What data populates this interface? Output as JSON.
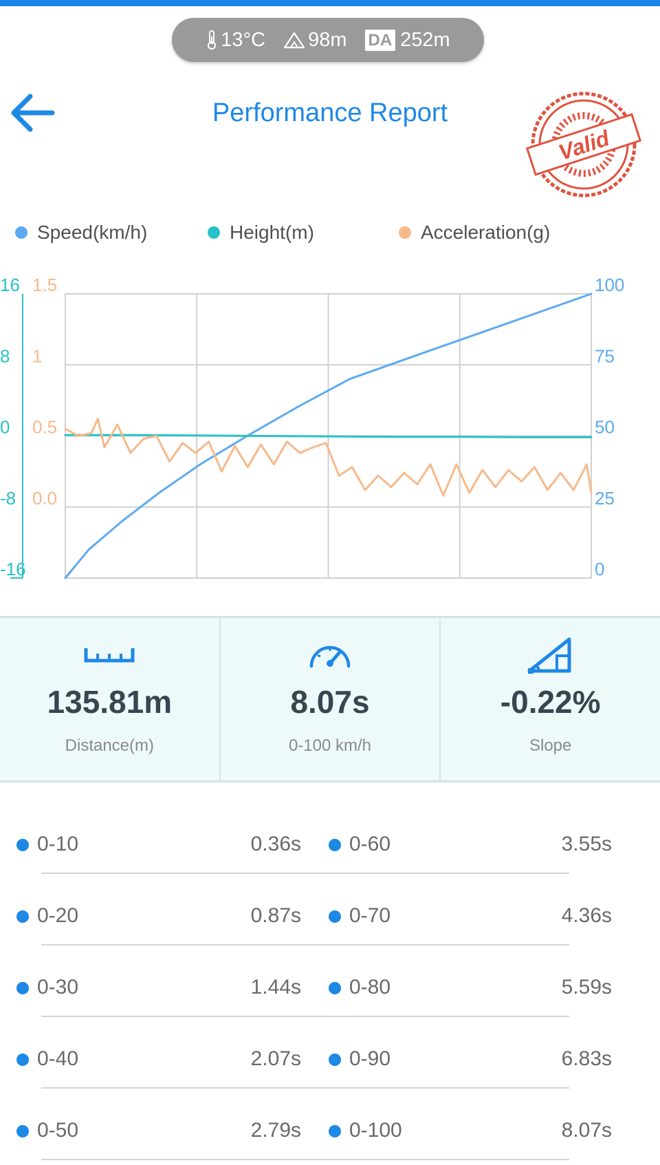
{
  "env": {
    "temperature": "13°C",
    "altitude": "98m",
    "da_label": "DA",
    "density_altitude": "252m"
  },
  "header": {
    "title": "Performance Report",
    "stamp_text": "Valid"
  },
  "legend": [
    {
      "label": "Speed(km/h)",
      "color": "#5eaaf0"
    },
    {
      "label": "Height(m)",
      "color": "#27c2c8"
    },
    {
      "label": "Acceleration(g)",
      "color": "#f7b98a"
    }
  ],
  "chart_data": {
    "type": "line",
    "x_range": [
      0,
      8.07
    ],
    "axes": {
      "height_ticks": [
        "16",
        "8",
        "0",
        "-8",
        "-16"
      ],
      "acceleration_ticks": [
        "1.5",
        "1",
        "0.5",
        "0.0"
      ],
      "speed_ticks": [
        "100",
        "75",
        "50",
        "25",
        "0"
      ],
      "height_range": [
        -16,
        16
      ],
      "acceleration_range": [
        -0.5,
        1.5
      ],
      "speed_range": [
        0,
        100
      ]
    },
    "grid": true,
    "series": [
      {
        "name": "Speed(km/h)",
        "axis": "speed",
        "x": [
          0,
          0.36,
          0.87,
          1.44,
          2.07,
          2.79,
          3.55,
          4.36,
          5.59,
          6.83,
          8.07
        ],
        "y": [
          0,
          10,
          20,
          30,
          40,
          50,
          60,
          70,
          80,
          90,
          100
        ]
      },
      {
        "name": "Height(m)",
        "axis": "height",
        "x": [
          0,
          1,
          2,
          3,
          4,
          5,
          6,
          7,
          8.07
        ],
        "y": [
          0.1,
          0.1,
          0.05,
          0,
          -0.05,
          -0.1,
          -0.1,
          -0.15,
          -0.15
        ]
      },
      {
        "name": "Acceleration(g)",
        "axis": "acceleration",
        "x": [
          0,
          0.2,
          0.4,
          0.5,
          0.6,
          0.8,
          1.0,
          1.2,
          1.4,
          1.6,
          1.8,
          2.0,
          2.2,
          2.4,
          2.6,
          2.8,
          3.0,
          3.2,
          3.4,
          3.6,
          3.8,
          4.0,
          4.2,
          4.4,
          4.6,
          4.8,
          5.0,
          5.2,
          5.4,
          5.6,
          5.8,
          6.0,
          6.2,
          6.4,
          6.6,
          6.8,
          7.0,
          7.2,
          7.4,
          7.6,
          7.8,
          8.0,
          8.07
        ],
        "y": [
          0.55,
          0.5,
          0.52,
          0.62,
          0.42,
          0.58,
          0.38,
          0.48,
          0.5,
          0.32,
          0.45,
          0.38,
          0.46,
          0.25,
          0.43,
          0.28,
          0.44,
          0.3,
          0.46,
          0.38,
          0.42,
          0.45,
          0.22,
          0.28,
          0.12,
          0.22,
          0.14,
          0.24,
          0.16,
          0.3,
          0.08,
          0.3,
          0.1,
          0.26,
          0.14,
          0.26,
          0.18,
          0.28,
          0.12,
          0.24,
          0.12,
          0.3,
          0.1
        ]
      }
    ]
  },
  "stats": [
    {
      "value": "135.81m",
      "label": "Distance(m)"
    },
    {
      "value": "8.07s",
      "label": "0-100 km/h"
    },
    {
      "value": "-0.22%",
      "label": "Slope"
    }
  ],
  "splits": [
    [
      {
        "label": "0-10",
        "time": "0.36s"
      },
      {
        "label": "0-60",
        "time": "3.55s"
      }
    ],
    [
      {
        "label": "0-20",
        "time": "0.87s"
      },
      {
        "label": "0-70",
        "time": "4.36s"
      }
    ],
    [
      {
        "label": "0-30",
        "time": "1.44s"
      },
      {
        "label": "0-80",
        "time": "5.59s"
      }
    ],
    [
      {
        "label": "0-40",
        "time": "2.07s"
      },
      {
        "label": "0-90",
        "time": "6.83s"
      }
    ],
    [
      {
        "label": "0-50",
        "time": "2.79s"
      },
      {
        "label": "0-100",
        "time": "8.07s"
      }
    ]
  ]
}
